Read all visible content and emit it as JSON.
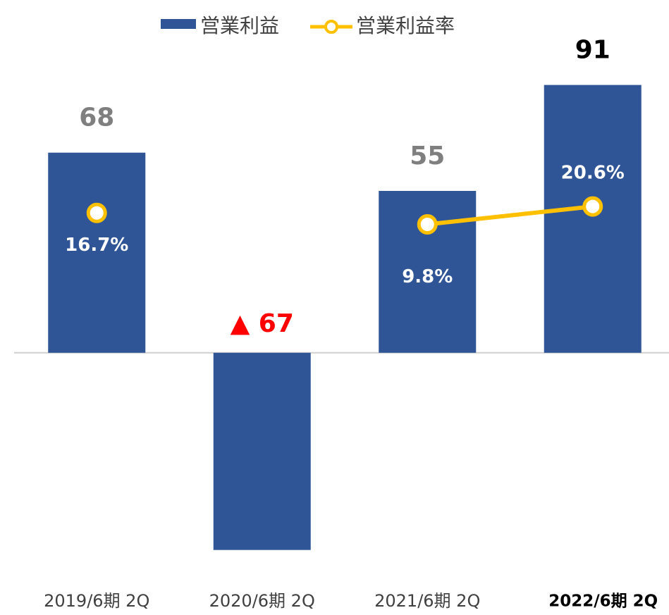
{
  "chart_data": {
    "type": "bar",
    "categories": [
      "2019/6期 2Q",
      "2020/6期 2Q",
      "2021/6期 2Q",
      "2022/6期 2Q"
    ],
    "series": [
      {
        "name": "営業利益",
        "type": "bar",
        "color": "#2f5597",
        "values": [
          68,
          -67,
          55,
          91
        ],
        "value_labels": [
          "68",
          "▲ 67",
          "55",
          "91"
        ],
        "value_label_colors": [
          "#7f7f7f",
          "#ff0000",
          "#7f7f7f",
          "#000000"
        ]
      },
      {
        "name": "営業利益率",
        "type": "line",
        "axis": "y2",
        "color": "#ffc000",
        "values": [
          16.7,
          null,
          9.8,
          20.6
        ],
        "value_labels": [
          "16.7%",
          null,
          "9.8%",
          "20.6%"
        ]
      }
    ],
    "ylim": [
      -80,
      100
    ],
    "y2lim": [
      -210,
      110
    ],
    "legend": "top"
  }
}
